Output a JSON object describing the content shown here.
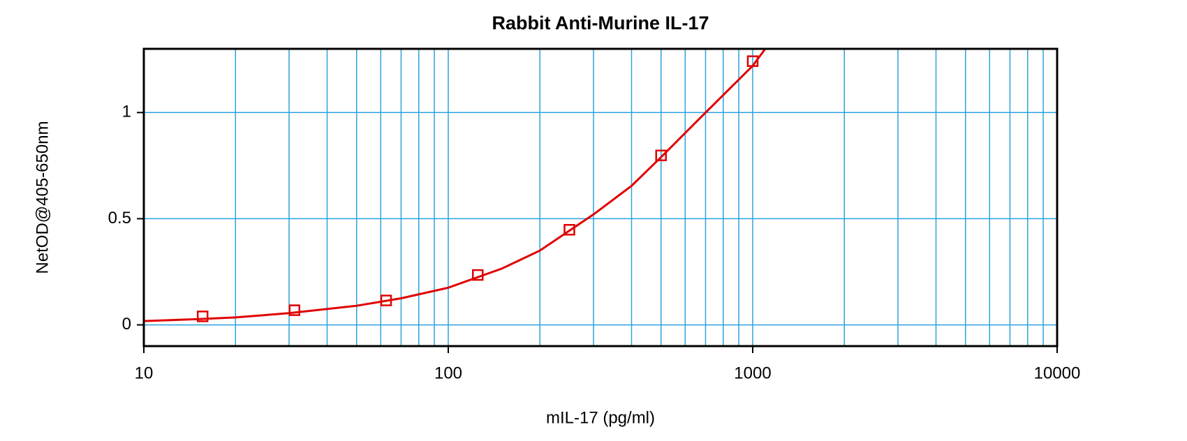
{
  "chart_data": {
    "type": "scatter",
    "title": "Rabbit Anti-Murine IL-17",
    "x_label": "mIL-17 (pg/ml)",
    "y_label": "NetOD@405-650nm",
    "log_x": true,
    "grid": true,
    "xlim": [
      10,
      10000
    ],
    "xticks": [
      10,
      100,
      1000,
      10000
    ],
    "ylim": [
      -0.1,
      1.3
    ],
    "yticks": [
      0,
      0.5,
      1
    ],
    "series": [
      {
        "style": "markers",
        "color": "#e00000",
        "x": [
          15.6,
          31.25,
          62.5,
          125,
          250,
          500,
          1000
        ],
        "values": [
          0.04,
          0.069,
          0.115,
          0.235,
          0.448,
          0.798,
          1.242
        ]
      },
      {
        "style": "line",
        "color": "#e00000",
        "x": [
          10,
          15,
          20,
          30,
          50,
          70,
          100,
          150,
          200,
          300,
          400,
          500,
          700,
          1000,
          1100
        ],
        "values": [
          0.018,
          0.027,
          0.035,
          0.055,
          0.09,
          0.125,
          0.175,
          0.265,
          0.35,
          0.52,
          0.655,
          0.79,
          1.0,
          1.22,
          1.3
        ]
      }
    ]
  }
}
